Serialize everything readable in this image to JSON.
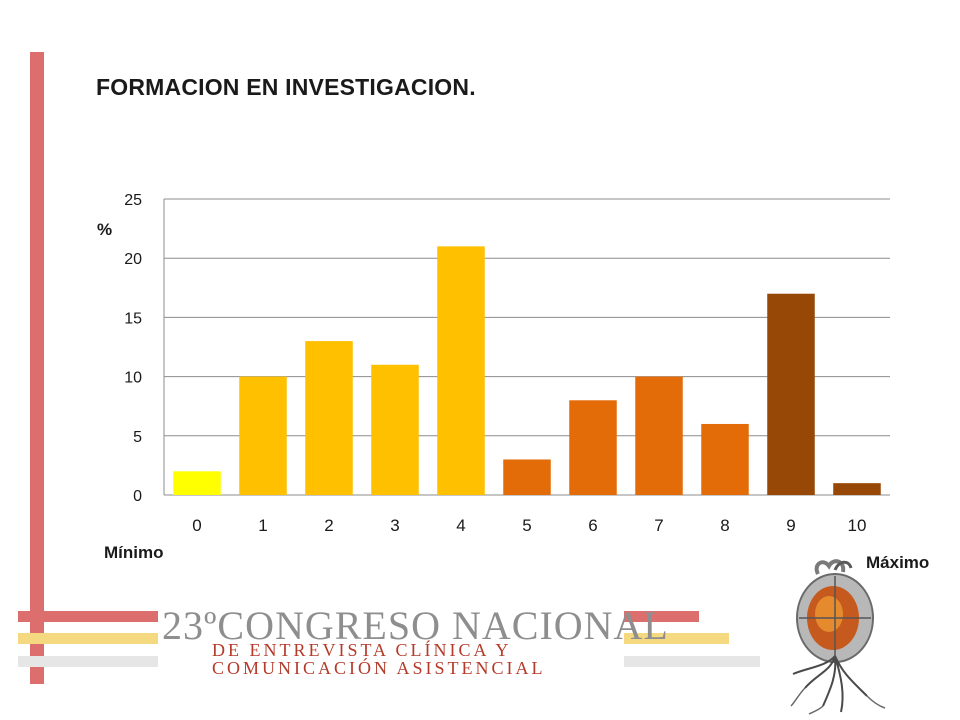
{
  "slide": {
    "title": "FORMACION EN INVESTIGACION.",
    "min_label": "Mínimo",
    "max_label": "Máximo"
  },
  "banner": {
    "line1": "23ºCONGRESO NACIONAL",
    "line2": "DE ENTREVISTA CLÍNICA Y",
    "line3": "COMUNICACIÓN ASISTENCIAL"
  },
  "colors": {
    "accent_red": "#dc6e6e",
    "accent_yellow": "#f5d980",
    "accent_grey": "#e6e6e6",
    "logo": "#7a7a7a"
  },
  "chart_data": {
    "type": "bar",
    "title": "",
    "xlabel": "",
    "ylabel": "%",
    "categories": [
      "0",
      "1",
      "2",
      "3",
      "4",
      "5",
      "6",
      "7",
      "8",
      "9",
      "10"
    ],
    "values": [
      2,
      10,
      13,
      11,
      21,
      3,
      8,
      10,
      6,
      17,
      1
    ],
    "bar_colors": [
      "#ffff00",
      "#ffc000",
      "#ffc000",
      "#ffc000",
      "#ffc000",
      "#e36c09",
      "#e36c09",
      "#e36c09",
      "#e36c09",
      "#974806",
      "#974806"
    ],
    "ylim": [
      0,
      25
    ],
    "yticks": [
      0,
      5,
      10,
      15,
      20,
      25
    ],
    "grid": true,
    "legend": "none"
  }
}
